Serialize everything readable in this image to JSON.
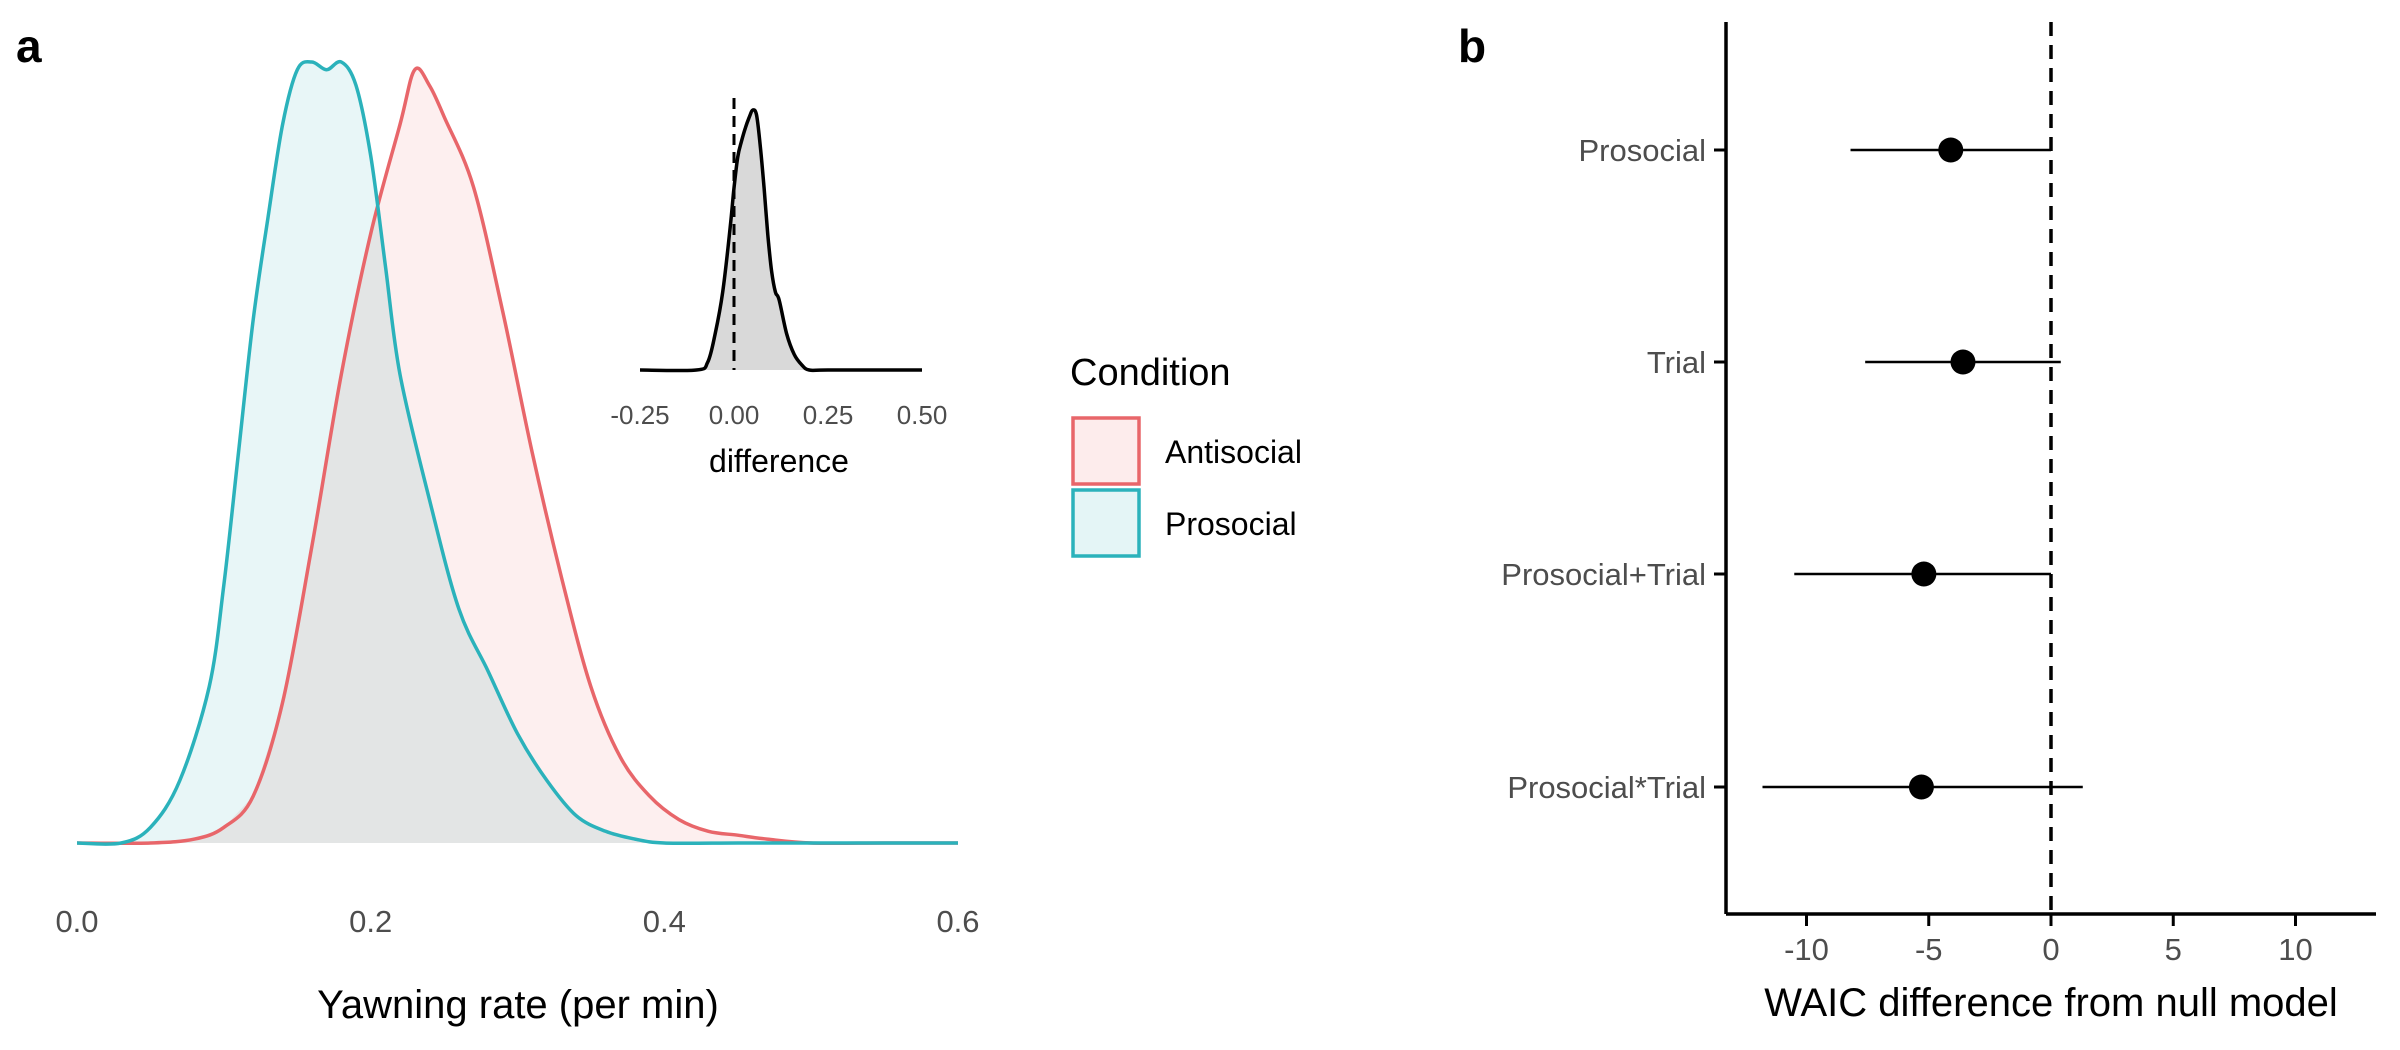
{
  "panels": [
    {
      "label": "a",
      "chart_data": {
        "type": "area",
        "subtype": "density",
        "xlabel": "Yawning rate (per min)",
        "xlim": [
          0,
          0.6
        ],
        "xticks": [
          "0.0",
          "0.2",
          "0.4",
          "0.6"
        ],
        "legend": {
          "title": "Condition",
          "placement": "right",
          "entries": [
            "Antisocial",
            "Prosocial"
          ]
        },
        "series": [
          {
            "name": "Antisocial",
            "color": "#E8666A",
            "fill": "#FDECEC",
            "x": [
              0.0,
              0.05,
              0.08,
              0.1,
              0.12,
              0.14,
              0.16,
              0.18,
              0.2,
              0.22,
              0.23,
              0.24,
              0.25,
              0.27,
              0.29,
              0.31,
              0.33,
              0.35,
              0.37,
              0.39,
              0.41,
              0.43,
              0.45,
              0.47,
              0.5,
              0.55,
              0.6
            ],
            "y": [
              0.0,
              0.0,
              0.005,
              0.02,
              0.06,
              0.18,
              0.38,
              0.6,
              0.78,
              0.92,
              0.99,
              0.97,
              0.93,
              0.84,
              0.68,
              0.5,
              0.34,
              0.2,
              0.11,
              0.06,
              0.03,
              0.015,
              0.01,
              0.005,
              0.0,
              0.0,
              0.0
            ]
          },
          {
            "name": "Prosocial",
            "color": "#2BB2BB",
            "fill": "#E4F5F6",
            "x": [
              0.0,
              0.03,
              0.05,
              0.07,
              0.09,
              0.1,
              0.11,
              0.12,
              0.13,
              0.14,
              0.15,
              0.16,
              0.17,
              0.18,
              0.19,
              0.2,
              0.21,
              0.22,
              0.24,
              0.26,
              0.28,
              0.3,
              0.32,
              0.34,
              0.36,
              0.38,
              0.4,
              0.45,
              0.5,
              0.6
            ],
            "y": [
              0.0,
              0.0,
              0.02,
              0.08,
              0.2,
              0.33,
              0.5,
              0.67,
              0.8,
              0.92,
              0.99,
              1.0,
              0.99,
              1.0,
              0.97,
              0.88,
              0.74,
              0.6,
              0.44,
              0.3,
              0.22,
              0.14,
              0.08,
              0.035,
              0.015,
              0.005,
              0.0,
              0.0,
              0.0,
              0.0
            ]
          }
        ]
      },
      "inset": {
        "chart_data": {
          "type": "area",
          "subtype": "density",
          "xlabel": "difference",
          "xlim": [
            -0.25,
            0.5
          ],
          "xticks": [
            "-0.25",
            "0.00",
            "0.25",
            "0.50"
          ],
          "reference_line_x": 0.0,
          "series": [
            {
              "color": "#000000",
              "fill": "#D9D9D9",
              "x": [
                -0.25,
                -0.1,
                -0.07,
                -0.05,
                -0.03,
                -0.01,
                0.0,
                0.01,
                0.02,
                0.03,
                0.04,
                0.05,
                0.06,
                0.07,
                0.08,
                0.09,
                0.1,
                0.11,
                0.12,
                0.14,
                0.16,
                0.18,
                0.2,
                0.25,
                0.5
              ],
              "y": [
                0.0,
                0.0,
                0.03,
                0.14,
                0.3,
                0.55,
                0.7,
                0.82,
                0.88,
                0.93,
                0.97,
                1.0,
                0.98,
                0.86,
                0.7,
                0.52,
                0.38,
                0.3,
                0.27,
                0.14,
                0.06,
                0.02,
                0.0,
                0.0,
                0.0
              ]
            }
          ]
        }
      }
    },
    {
      "label": "b",
      "chart_data": {
        "type": "scatter",
        "subtype": "pointrange",
        "xlabel": "WAIC difference from null model",
        "xlim": [
          -13,
          13
        ],
        "xticks": [
          -10,
          -5,
          0,
          5,
          10
        ],
        "reference_line_x": 0,
        "categories": [
          "Prosocial",
          "Trial",
          "Prosocial+Trial",
          "Prosocial*Trial"
        ],
        "points": [
          {
            "label": "Prosocial",
            "estimate": -4.1,
            "low": -8.2,
            "high": 0.0
          },
          {
            "label": "Trial",
            "estimate": -3.6,
            "low": -7.6,
            "high": 0.4
          },
          {
            "label": "Prosocial+Trial",
            "estimate": -5.2,
            "low": -10.5,
            "high": 0.0
          },
          {
            "label": "Prosocial*Trial",
            "estimate": -5.3,
            "low": -11.8,
            "high": 1.3
          }
        ]
      }
    }
  ]
}
